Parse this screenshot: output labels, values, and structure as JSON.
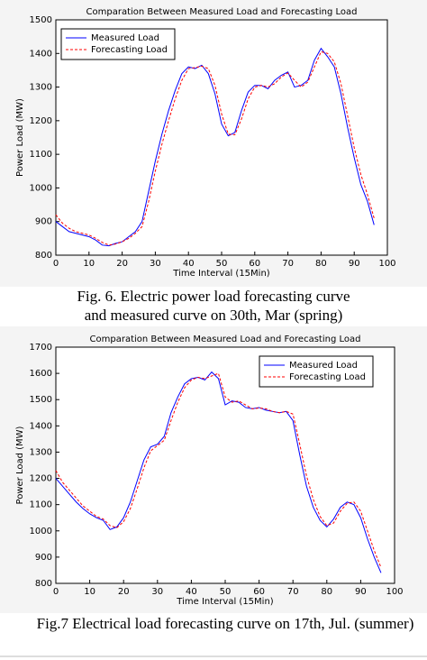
{
  "chart_data": [
    {
      "type": "line",
      "title": "Comparation Between Measured Load and Forecasting Load",
      "xlabel": "Time Interval (15Min)",
      "ylabel": "Power Load (MW)",
      "x": [
        0,
        2,
        4,
        6,
        8,
        10,
        12,
        14,
        16,
        18,
        20,
        22,
        24,
        26,
        28,
        30,
        32,
        34,
        36,
        38,
        40,
        42,
        44,
        46,
        48,
        50,
        52,
        54,
        56,
        58,
        60,
        62,
        64,
        66,
        68,
        70,
        72,
        74,
        76,
        78,
        80,
        82,
        84,
        86,
        88,
        90,
        92,
        94,
        96
      ],
      "series": [
        {
          "name": "Measured Load",
          "color": "#0000ff",
          "linestyle": "solid",
          "values": [
            900,
            885,
            870,
            865,
            860,
            855,
            845,
            830,
            828,
            835,
            840,
            855,
            870,
            900,
            990,
            1080,
            1160,
            1230,
            1290,
            1340,
            1360,
            1355,
            1365,
            1340,
            1280,
            1190,
            1155,
            1165,
            1230,
            1285,
            1305,
            1305,
            1295,
            1320,
            1335,
            1345,
            1300,
            1305,
            1320,
            1380,
            1415,
            1390,
            1360,
            1280,
            1180,
            1090,
            1010,
            960,
            890
          ]
        },
        {
          "name": "Forecasting Load",
          "color": "#ff0000",
          "linestyle": "dashed",
          "values": [
            920,
            895,
            880,
            870,
            865,
            860,
            850,
            838,
            830,
            833,
            840,
            850,
            865,
            885,
            960,
            1050,
            1130,
            1200,
            1265,
            1320,
            1355,
            1358,
            1362,
            1355,
            1305,
            1220,
            1160,
            1158,
            1205,
            1265,
            1300,
            1305,
            1300,
            1310,
            1330,
            1342,
            1320,
            1300,
            1315,
            1360,
            1405,
            1400,
            1375,
            1310,
            1215,
            1120,
            1040,
            980,
            910
          ]
        }
      ],
      "xlim": [
        0,
        100
      ],
      "xticks": [
        0,
        10,
        20,
        30,
        40,
        50,
        60,
        70,
        80,
        90,
        100
      ],
      "ylim": [
        800,
        1500
      ],
      "yticks": [
        800,
        900,
        1000,
        1100,
        1200,
        1300,
        1400,
        1500
      ],
      "legend": "upper left",
      "caption": [
        "Fig. 6. Electric power load forecasting curve",
        "and measured curve on 30th, Mar (spring)"
      ]
    },
    {
      "type": "line",
      "title": "Comparation Between Measured Load and Forecasting Load",
      "xlabel": "Time Interval (15Min)",
      "ylabel": "Power Load (MW)",
      "x": [
        0,
        2,
        4,
        6,
        8,
        10,
        12,
        14,
        16,
        18,
        20,
        22,
        24,
        26,
        28,
        30,
        32,
        34,
        36,
        38,
        40,
        42,
        44,
        46,
        48,
        50,
        52,
        54,
        56,
        58,
        60,
        62,
        64,
        66,
        68,
        70,
        72,
        74,
        76,
        78,
        80,
        82,
        84,
        86,
        88,
        90,
        92,
        94,
        96
      ],
      "series": [
        {
          "name": "Measured Load",
          "color": "#0000ff",
          "linestyle": "solid",
          "values": [
            1200,
            1170,
            1140,
            1110,
            1085,
            1065,
            1050,
            1040,
            1005,
            1015,
            1050,
            1110,
            1190,
            1270,
            1320,
            1330,
            1360,
            1450,
            1510,
            1560,
            1580,
            1585,
            1575,
            1605,
            1580,
            1480,
            1495,
            1490,
            1470,
            1465,
            1470,
            1460,
            1455,
            1450,
            1455,
            1420,
            1290,
            1170,
            1090,
            1040,
            1015,
            1045,
            1090,
            1110,
            1100,
            1050,
            970,
            900,
            840
          ]
        },
        {
          "name": "Forecasting Load",
          "color": "#ff0000",
          "linestyle": "dashed",
          "values": [
            1230,
            1185,
            1155,
            1125,
            1095,
            1075,
            1055,
            1045,
            1020,
            1012,
            1035,
            1085,
            1160,
            1240,
            1305,
            1325,
            1345,
            1420,
            1490,
            1545,
            1575,
            1585,
            1580,
            1590,
            1600,
            1510,
            1490,
            1495,
            1480,
            1465,
            1468,
            1465,
            1455,
            1450,
            1455,
            1445,
            1330,
            1210,
            1120,
            1055,
            1020,
            1030,
            1075,
            1105,
            1110,
            1075,
            1000,
            925,
            860
          ]
        }
      ],
      "xlim": [
        0,
        100
      ],
      "xticks": [
        0,
        10,
        20,
        30,
        40,
        50,
        60,
        70,
        80,
        90,
        100
      ],
      "ylim": [
        800,
        1700
      ],
      "yticks": [
        800,
        900,
        1000,
        1100,
        1200,
        1300,
        1400,
        1500,
        1600,
        1700
      ],
      "legend": "upper right",
      "caption": [
        "Fig.7 Electrical load forecasting curve on 17th, Jul. (summer)"
      ]
    }
  ]
}
